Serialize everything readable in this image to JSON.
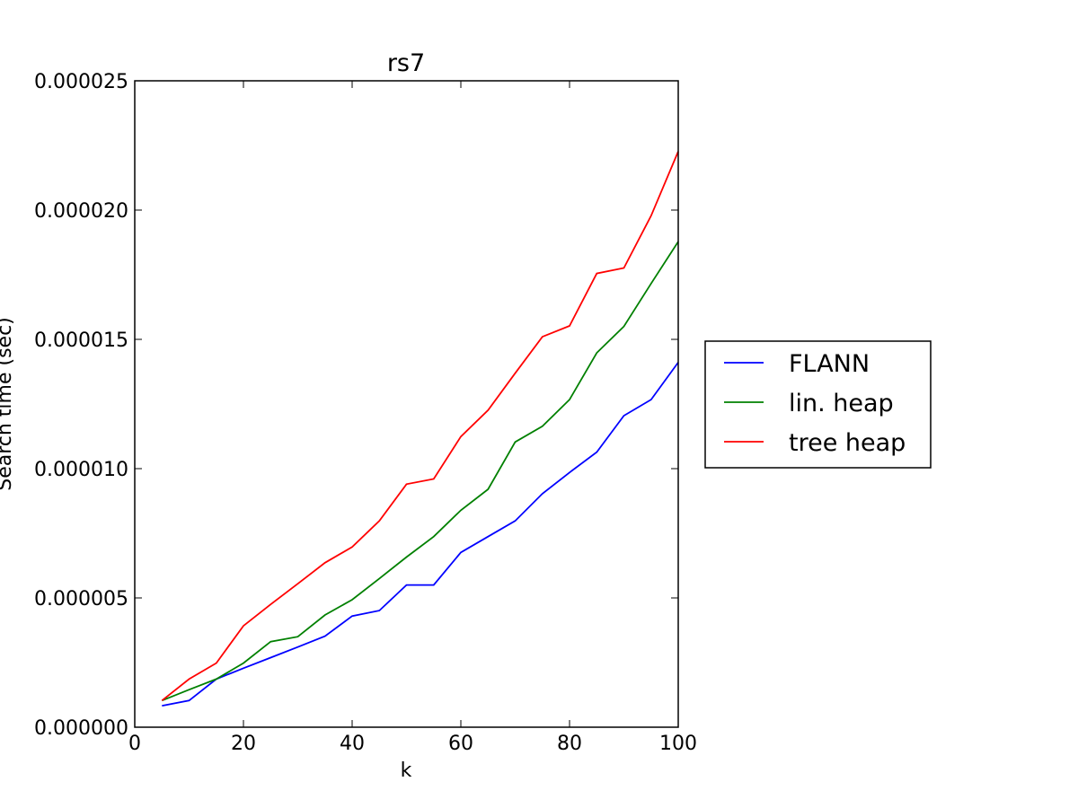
{
  "chart_data": {
    "type": "line",
    "title": "rs7",
    "xlabel": "k",
    "ylabel": "Search time (sec)",
    "xlim": [
      0,
      100
    ],
    "ylim": [
      0,
      2.5e-05
    ],
    "xticks": [
      0,
      20,
      40,
      60,
      80,
      100
    ],
    "xtick_labels": [
      "0",
      "20",
      "40",
      "60",
      "80",
      "100"
    ],
    "yticks": [
      0,
      5e-06,
      1e-05,
      1.5e-05,
      2e-05,
      2.5e-05
    ],
    "ytick_labels": [
      "0.000000",
      "0.000005",
      "0.000010",
      "0.000015",
      "0.000020",
      "0.000025"
    ],
    "grid": false,
    "legend_position": "right, outside plot",
    "x": [
      5,
      10,
      15,
      20,
      25,
      30,
      35,
      40,
      45,
      50,
      55,
      60,
      65,
      70,
      75,
      80,
      85,
      90,
      95,
      100
    ],
    "series": [
      {
        "name": "FLANN",
        "color": "#0000ff",
        "values": [
          8.3e-07,
          1.03e-06,
          1.86e-06,
          2.28e-06,
          2.69e-06,
          3.1e-06,
          3.52e-06,
          4.3e-06,
          4.51e-06,
          5.5e-06,
          5.5e-06,
          6.76e-06,
          7.37e-06,
          7.98e-06,
          9.03e-06,
          9.85e-06,
          1.064e-05,
          1.205e-05,
          1.267e-05,
          1.411e-05
        ]
      },
      {
        "name": "lin. heap",
        "color": "#008000",
        "values": [
          1.03e-06,
          1.45e-06,
          1.86e-06,
          2.48e-06,
          3.31e-06,
          3.5e-06,
          4.34e-06,
          4.93e-06,
          5.75e-06,
          6.58e-06,
          7.37e-06,
          8.39e-06,
          9.2e-06,
          1.103e-05,
          1.164e-05,
          1.267e-05,
          1.448e-05,
          1.55e-05,
          1.716e-05,
          1.878e-05
        ]
      },
      {
        "name": "tree heap",
        "color": "#ff0000",
        "values": [
          1.03e-06,
          1.86e-06,
          2.48e-06,
          3.92e-06,
          4.75e-06,
          5.55e-06,
          6.36e-06,
          6.97e-06,
          7.98e-06,
          9.4e-06,
          9.6e-06,
          1.124e-05,
          1.226e-05,
          1.369e-05,
          1.51e-05,
          1.552e-05,
          1.755e-05,
          1.776e-05,
          1.978e-05,
          2.227e-05
        ]
      }
    ]
  }
}
